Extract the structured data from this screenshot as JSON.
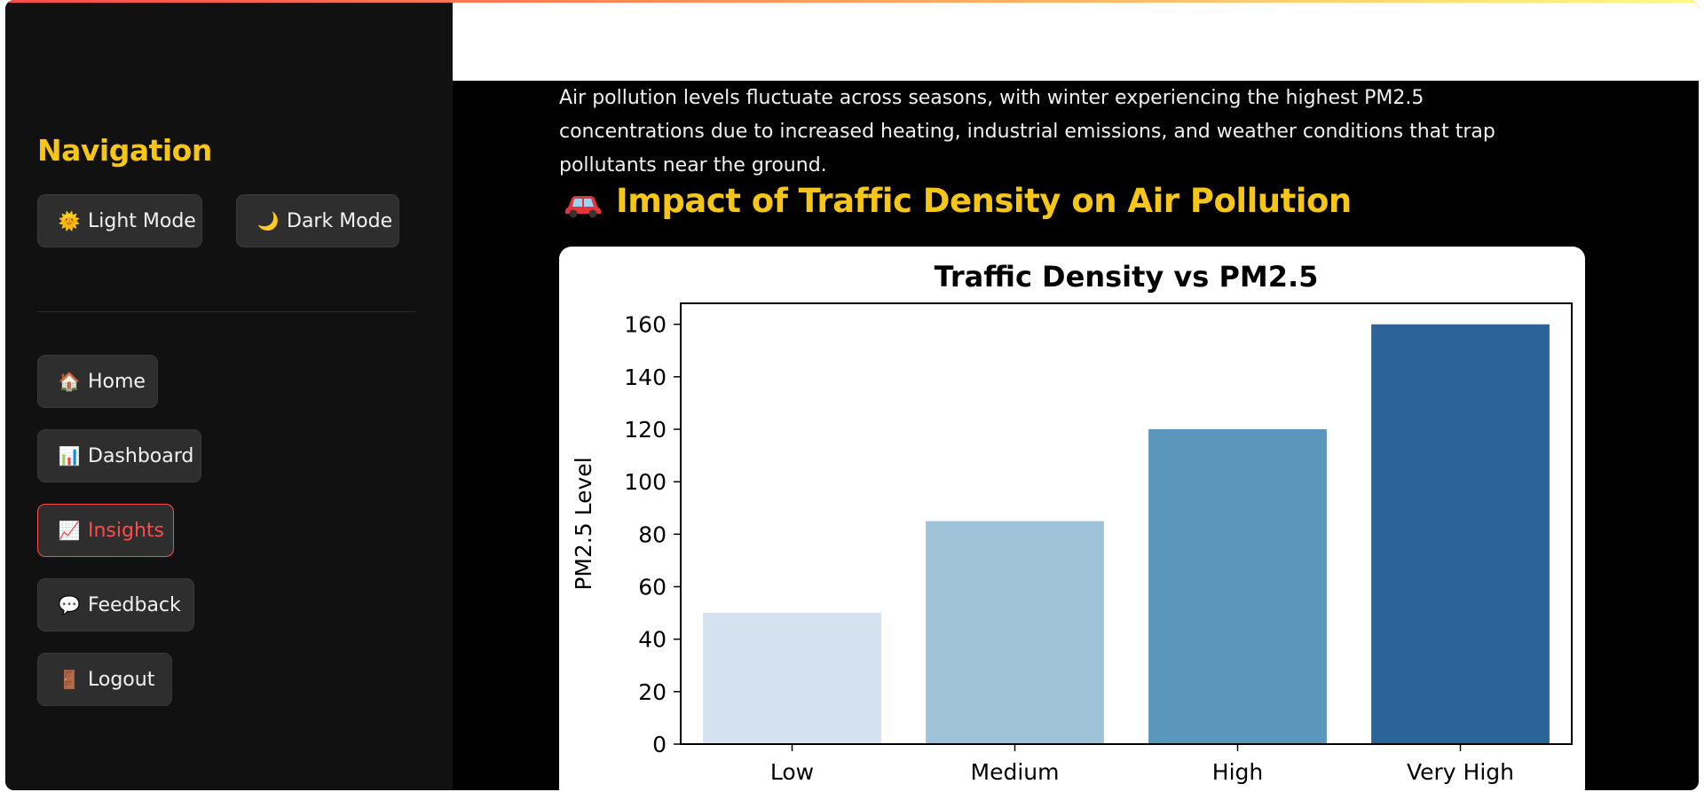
{
  "sidebar": {
    "title": "Navigation",
    "theme_buttons": [
      {
        "icon": "🌞",
        "label": "Light Mode"
      },
      {
        "icon": "🌙",
        "label": "Dark Mode"
      }
    ],
    "items": [
      {
        "icon": "🏠",
        "label": "Home"
      },
      {
        "icon": "📊",
        "label": "Dashboard"
      },
      {
        "icon": "📈",
        "label": "Insights",
        "active": true
      },
      {
        "icon": "💬",
        "label": "Feedback"
      },
      {
        "icon": "🚪",
        "label": "Logout"
      }
    ]
  },
  "main": {
    "intro": "Air pollution levels fluctuate across seasons, with winter experiencing the highest PM2.5 concentrations due to increased heating, industrial emissions, and weather conditions that trap pollutants near the ground.",
    "section_title": "Impact of Traffic Density on Air Pollution"
  },
  "colors": {
    "accent": "#f5c518",
    "active": "#ff4b4b",
    "bars": [
      "#d4e2f0",
      "#9ec3d8",
      "#5b96bb",
      "#2b6499"
    ]
  },
  "chart_data": {
    "type": "bar",
    "title": "Traffic Density vs PM2.5",
    "xlabel": "",
    "ylabel": "PM2.5 Level",
    "categories": [
      "Low",
      "Medium",
      "High",
      "Very High"
    ],
    "values": [
      50,
      85,
      120,
      160
    ],
    "ylim": [
      0,
      168
    ],
    "yticks": [
      0,
      20,
      40,
      60,
      80,
      100,
      120,
      140,
      160
    ],
    "grid": false
  }
}
